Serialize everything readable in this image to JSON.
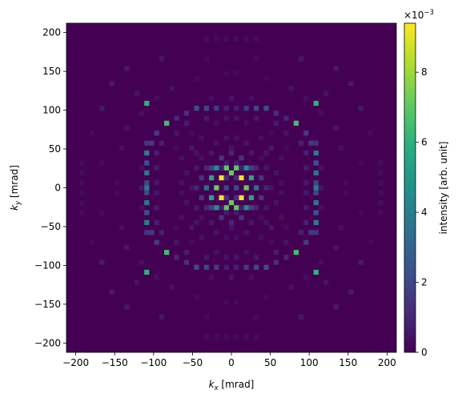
{
  "chart_data": {
    "type": "heatmap",
    "title": "",
    "xlabel": {
      "base": "k",
      "sub": "x",
      "unit": " [mrad]"
    },
    "ylabel": {
      "base": "k",
      "sub": "y",
      "unit": " [mrad]"
    },
    "xlim": [
      -212,
      212
    ],
    "ylim": [
      -212,
      212
    ],
    "xticks": [
      -200,
      -150,
      -100,
      -50,
      0,
      50,
      100,
      150,
      200
    ],
    "yticks": [
      -200,
      -150,
      -100,
      -50,
      0,
      50,
      100,
      150,
      200
    ],
    "xtick_labels": [
      "−200",
      "−150",
      "−100",
      "−50",
      "0",
      "50",
      "100",
      "150",
      "200"
    ],
    "ytick_labels": [
      "−200",
      "−150",
      "−100",
      "−50",
      "0",
      "50",
      "100",
      "150",
      "200"
    ],
    "bin_size": 6.4,
    "colormap": "viridis",
    "colorbar": {
      "label": "intensity [arb. unit]",
      "range": [
        0,
        9.4
      ],
      "ticks": [
        0,
        2,
        4,
        6,
        8
      ],
      "tick_labels": [
        "0",
        "2",
        "4",
        "6",
        "8"
      ],
      "exponent_label": "×10",
      "exponent_power": "−3"
    },
    "grid": false,
    "pixels_note_units": "kx, ky in mrad; value in units of 1e-3 arb.",
    "pixels": [
      [
        -12.8,
        12.8,
        9.2
      ],
      [
        12.8,
        12.8,
        9.2
      ],
      [
        -12.8,
        -12.8,
        9.2
      ],
      [
        12.8,
        -12.8,
        9.2
      ],
      [
        -19.2,
        0,
        7.2
      ],
      [
        19.2,
        0,
        7.2
      ],
      [
        0,
        19.2,
        7.2
      ],
      [
        0,
        -19.2,
        7.2
      ],
      [
        -6.4,
        25.6,
        7.0
      ],
      [
        6.4,
        25.6,
        7.0
      ],
      [
        -6.4,
        -25.6,
        7.0
      ],
      [
        6.4,
        -25.6,
        7.0
      ],
      [
        -25.6,
        12.8,
        5.5
      ],
      [
        25.6,
        12.8,
        5.5
      ],
      [
        -25.6,
        -12.8,
        5.5
      ],
      [
        25.6,
        -12.8,
        5.5
      ],
      [
        -19.2,
        25.6,
        4.5
      ],
      [
        19.2,
        25.6,
        4.5
      ],
      [
        -19.2,
        -25.6,
        4.5
      ],
      [
        19.2,
        -25.6,
        4.5
      ],
      [
        -32,
        0,
        3.5
      ],
      [
        32,
        0,
        3.5
      ],
      [
        -6.4,
        0,
        2.0
      ],
      [
        6.4,
        0,
        2.0
      ],
      [
        -25.6,
        25.6,
        1.8
      ],
      [
        25.6,
        25.6,
        1.8
      ],
      [
        -25.6,
        -25.6,
        1.8
      ],
      [
        25.6,
        -25.6,
        1.8
      ],
      [
        -38.4,
        12.8,
        1.4
      ],
      [
        38.4,
        12.8,
        1.4
      ],
      [
        -38.4,
        -12.8,
        1.4
      ],
      [
        38.4,
        -12.8,
        1.4
      ],
      [
        -12.8,
        38.4,
        1.4
      ],
      [
        12.8,
        38.4,
        1.4
      ],
      [
        -12.8,
        -38.4,
        1.4
      ],
      [
        12.8,
        -38.4,
        1.4
      ],
      [
        -6.4,
        12.8,
        1.2
      ],
      [
        6.4,
        12.8,
        1.2
      ],
      [
        -6.4,
        -12.8,
        1.2
      ],
      [
        6.4,
        -12.8,
        1.2
      ],
      [
        -44.8,
        0,
        1.0
      ],
      [
        44.8,
        0,
        1.0
      ],
      [
        0,
        44.8,
        1.0
      ],
      [
        0,
        -44.8,
        1.0
      ],
      [
        -32,
        25.6,
        1.0
      ],
      [
        32,
        25.6,
        1.0
      ],
      [
        -32,
        -25.6,
        1.0
      ],
      [
        32,
        -25.6,
        1.0
      ],
      [
        -108.8,
        108.8,
        6.0
      ],
      [
        108.8,
        108.8,
        6.0
      ],
      [
        -108.8,
        -108.8,
        6.0
      ],
      [
        108.8,
        -108.8,
        6.0
      ],
      [
        -83.2,
        83.2,
        6.5
      ],
      [
        83.2,
        83.2,
        6.5
      ],
      [
        -83.2,
        -83.2,
        6.5
      ],
      [
        83.2,
        -83.2,
        6.5
      ],
      [
        -108.8,
        0,
        4.0
      ],
      [
        108.8,
        0,
        4.0
      ],
      [
        -108.8,
        44.8,
        4.0
      ],
      [
        108.8,
        44.8,
        4.0
      ],
      [
        -108.8,
        -44.8,
        4.0
      ],
      [
        108.8,
        -44.8,
        4.0
      ],
      [
        -108.8,
        19.2,
        3.8
      ],
      [
        108.8,
        19.2,
        3.8
      ],
      [
        -108.8,
        -19.2,
        3.8
      ],
      [
        108.8,
        -19.2,
        3.8
      ],
      [
        -108.8,
        32,
        2.4
      ],
      [
        108.8,
        32,
        2.4
      ],
      [
        -108.8,
        -32,
        2.4
      ],
      [
        108.8,
        -32,
        2.4
      ],
      [
        -108.8,
        6.4,
        2.0
      ],
      [
        108.8,
        6.4,
        2.0
      ],
      [
        -108.8,
        -6.4,
        2.0
      ],
      [
        108.8,
        -6.4,
        2.0
      ],
      [
        -102.4,
        57.6,
        1.6
      ],
      [
        102.4,
        57.6,
        1.6
      ],
      [
        -102.4,
        -57.6,
        1.6
      ],
      [
        102.4,
        -57.6,
        1.6
      ],
      [
        -108.8,
        57.6,
        1.4
      ],
      [
        108.8,
        57.6,
        1.4
      ],
      [
        -108.8,
        -57.6,
        1.4
      ],
      [
        108.8,
        -57.6,
        1.4
      ],
      [
        -96,
        70.4,
        1.6
      ],
      [
        96,
        70.4,
        1.6
      ],
      [
        -96,
        -70.4,
        1.6
      ],
      [
        96,
        -70.4,
        1.6
      ],
      [
        -32,
        102.4,
        2.0
      ],
      [
        32,
        102.4,
        2.0
      ],
      [
        -32,
        -102.4,
        2.0
      ],
      [
        32,
        -102.4,
        2.0
      ],
      [
        -44.8,
        102.4,
        2.2
      ],
      [
        44.8,
        102.4,
        2.2
      ],
      [
        -44.8,
        -102.4,
        2.2
      ],
      [
        44.8,
        -102.4,
        2.2
      ],
      [
        -19.2,
        102.4,
        1.6
      ],
      [
        19.2,
        102.4,
        1.6
      ],
      [
        -19.2,
        -102.4,
        1.6
      ],
      [
        19.2,
        -102.4,
        1.6
      ],
      [
        -6.4,
        102.4,
        0.8
      ],
      [
        6.4,
        102.4,
        0.8
      ],
      [
        -6.4,
        -102.4,
        0.8
      ],
      [
        6.4,
        -102.4,
        0.8
      ],
      [
        -57.6,
        96,
        1.2
      ],
      [
        57.6,
        96,
        1.2
      ],
      [
        -57.6,
        -96,
        1.2
      ],
      [
        57.6,
        -96,
        1.2
      ],
      [
        -70.4,
        89.6,
        1.0
      ],
      [
        70.4,
        89.6,
        1.0
      ],
      [
        -70.4,
        -89.6,
        1.0
      ],
      [
        70.4,
        -89.6,
        1.0
      ],
      [
        -57.6,
        83.2,
        0.7
      ],
      [
        57.6,
        83.2,
        0.7
      ],
      [
        -57.6,
        -83.2,
        0.7
      ],
      [
        57.6,
        -83.2,
        0.7
      ],
      [
        -89.6,
        57.6,
        0.8
      ],
      [
        89.6,
        57.6,
        0.8
      ],
      [
        -89.6,
        -57.6,
        0.8
      ],
      [
        89.6,
        -57.6,
        0.8
      ],
      [
        -96,
        44.8,
        0.8
      ],
      [
        96,
        44.8,
        0.8
      ],
      [
        -96,
        -44.8,
        0.8
      ],
      [
        96,
        -44.8,
        0.8
      ],
      [
        -96,
        25.6,
        0.7
      ],
      [
        96,
        25.6,
        0.7
      ],
      [
        -96,
        -25.6,
        0.7
      ],
      [
        96,
        -25.6,
        0.7
      ],
      [
        -96,
        6.4,
        0.6
      ],
      [
        96,
        6.4,
        0.6
      ],
      [
        -96,
        -6.4,
        0.6
      ],
      [
        96,
        -6.4,
        0.6
      ],
      [
        -32,
        89.6,
        0.6
      ],
      [
        32,
        89.6,
        0.6
      ],
      [
        -32,
        -89.6,
        0.6
      ],
      [
        32,
        -89.6,
        0.6
      ],
      [
        -6.4,
        89.6,
        0.5
      ],
      [
        6.4,
        89.6,
        0.5
      ],
      [
        -6.4,
        -89.6,
        0.5
      ],
      [
        6.4,
        -89.6,
        0.5
      ],
      [
        -19.2,
        83.2,
        0.4
      ],
      [
        19.2,
        83.2,
        0.4
      ],
      [
        -19.2,
        -83.2,
        0.4
      ],
      [
        19.2,
        -83.2,
        0.4
      ],
      [
        -115.2,
        0,
        0.6
      ],
      [
        115.2,
        0,
        0.6
      ],
      [
        0,
        115.2,
        0.5
      ],
      [
        0,
        -115.2,
        0.5
      ],
      [
        -115.2,
        25.6,
        0.4
      ],
      [
        115.2,
        25.6,
        0.4
      ],
      [
        -115.2,
        -25.6,
        0.4
      ],
      [
        115.2,
        -25.6,
        0.4
      ],
      [
        -25.6,
        115.2,
        0.4
      ],
      [
        25.6,
        115.2,
        0.4
      ],
      [
        -25.6,
        -115.2,
        0.4
      ],
      [
        25.6,
        -115.2,
        0.4
      ],
      [
        -70.4,
        70.4,
        0.5
      ],
      [
        70.4,
        70.4,
        0.5
      ],
      [
        -70.4,
        -70.4,
        0.5
      ],
      [
        70.4,
        -70.4,
        0.5
      ],
      [
        -51.2,
        51.2,
        0.6
      ],
      [
        51.2,
        51.2,
        0.6
      ],
      [
        -51.2,
        -51.2,
        0.6
      ],
      [
        51.2,
        -51.2,
        0.6
      ],
      [
        -44.8,
        44.8,
        0.5
      ],
      [
        44.8,
        44.8,
        0.5
      ],
      [
        -44.8,
        -44.8,
        0.5
      ],
      [
        44.8,
        -44.8,
        0.5
      ],
      [
        -57.6,
        19.2,
        0.5
      ],
      [
        57.6,
        19.2,
        0.5
      ],
      [
        -57.6,
        -19.2,
        0.5
      ],
      [
        57.6,
        -19.2,
        0.5
      ],
      [
        -19.2,
        57.6,
        0.5
      ],
      [
        19.2,
        57.6,
        0.5
      ],
      [
        -19.2,
        -57.6,
        0.5
      ],
      [
        19.2,
        -57.6,
        0.5
      ],
      [
        -51.2,
        0,
        0.5
      ],
      [
        51.2,
        0,
        0.5
      ],
      [
        0,
        51.2,
        0.5
      ],
      [
        0,
        -51.2,
        0.5
      ],
      [
        -44.8,
        25.6,
        0.6
      ],
      [
        44.8,
        25.6,
        0.6
      ],
      [
        -44.8,
        -25.6,
        0.6
      ],
      [
        44.8,
        -25.6,
        0.6
      ],
      [
        -25.6,
        44.8,
        0.6
      ],
      [
        25.6,
        44.8,
        0.6
      ],
      [
        -25.6,
        -44.8,
        0.6
      ],
      [
        25.6,
        -44.8,
        0.6
      ],
      [
        -64,
        38.4,
        0.4
      ],
      [
        64,
        38.4,
        0.4
      ],
      [
        -64,
        -38.4,
        0.4
      ],
      [
        64,
        -38.4,
        0.4
      ],
      [
        -38.4,
        64,
        0.4
      ],
      [
        38.4,
        64,
        0.4
      ],
      [
        -38.4,
        -64,
        0.4
      ],
      [
        38.4,
        -64,
        0.4
      ],
      [
        -64,
        6.4,
        0.4
      ],
      [
        64,
        6.4,
        0.4
      ],
      [
        -64,
        -6.4,
        0.4
      ],
      [
        64,
        -6.4,
        0.4
      ],
      [
        -6.4,
        64,
        0.4
      ],
      [
        6.4,
        64,
        0.4
      ],
      [
        -6.4,
        -64,
        0.4
      ],
      [
        6.4,
        -64,
        0.4
      ],
      [
        -6.4,
        32,
        0.7
      ],
      [
        6.4,
        32,
        0.7
      ],
      [
        -6.4,
        -32,
        0.7
      ],
      [
        6.4,
        -32,
        0.7
      ],
      [
        -12.8,
        25.6,
        0.8
      ],
      [
        12.8,
        25.6,
        0.8
      ],
      [
        -12.8,
        -25.6,
        0.8
      ],
      [
        12.8,
        -25.6,
        0.8
      ],
      [
        -38.4,
        38.4,
        0.4
      ],
      [
        38.4,
        38.4,
        0.4
      ],
      [
        -38.4,
        -38.4,
        0.4
      ],
      [
        38.4,
        -38.4,
        0.4
      ],
      [
        -70.4,
        51.2,
        0.3
      ],
      [
        70.4,
        51.2,
        0.3
      ],
      [
        -70.4,
        -51.2,
        0.3
      ],
      [
        70.4,
        -51.2,
        0.3
      ],
      [
        -51.2,
        70.4,
        0.3
      ],
      [
        51.2,
        70.4,
        0.3
      ],
      [
        -51.2,
        -70.4,
        0.3
      ],
      [
        51.2,
        -70.4,
        0.3
      ],
      [
        -153.6,
        134.4,
        0.7
      ],
      [
        153.6,
        134.4,
        0.7
      ],
      [
        -153.6,
        -134.4,
        0.7
      ],
      [
        153.6,
        -134.4,
        0.7
      ],
      [
        -134.4,
        153.6,
        0.7
      ],
      [
        134.4,
        153.6,
        0.7
      ],
      [
        -134.4,
        -153.6,
        0.7
      ],
      [
        134.4,
        -153.6,
        0.7
      ],
      [
        -166.4,
        102.4,
        0.7
      ],
      [
        166.4,
        102.4,
        0.7
      ],
      [
        -166.4,
        -96,
        0.7
      ],
      [
        166.4,
        -96,
        0.7
      ],
      [
        -89.6,
        166.4,
        0.6
      ],
      [
        89.6,
        166.4,
        0.6
      ],
      [
        -89.6,
        -166.4,
        0.6
      ],
      [
        89.6,
        -166.4,
        0.6
      ],
      [
        -134.4,
        76.8,
        0.6
      ],
      [
        134.4,
        76.8,
        0.6
      ],
      [
        -134.4,
        -76.8,
        0.6
      ],
      [
        134.4,
        -76.8,
        0.6
      ],
      [
        -76.8,
        128,
        0.5
      ],
      [
        76.8,
        128,
        0.5
      ],
      [
        -76.8,
        -128,
        0.5
      ],
      [
        76.8,
        -128,
        0.5
      ],
      [
        -140.8,
        51.2,
        0.4
      ],
      [
        140.8,
        51.2,
        0.4
      ],
      [
        -140.8,
        -51.2,
        0.4
      ],
      [
        140.8,
        -51.2,
        0.4
      ],
      [
        -121.6,
        121.6,
        0.5
      ],
      [
        121.6,
        121.6,
        0.5
      ],
      [
        -121.6,
        -121.6,
        0.5
      ],
      [
        121.6,
        -121.6,
        0.5
      ],
      [
        -96,
        115.2,
        0.4
      ],
      [
        96,
        115.2,
        0.4
      ],
      [
        -96,
        -115.2,
        0.4
      ],
      [
        96,
        -115.2,
        0.4
      ],
      [
        -115.2,
        96,
        0.4
      ],
      [
        115.2,
        96,
        0.4
      ],
      [
        -115.2,
        -96,
        0.4
      ],
      [
        115.2,
        -96,
        0.4
      ],
      [
        -192,
        32,
        0.3
      ],
      [
        192,
        32,
        0.3
      ],
      [
        -192,
        -32,
        0.3
      ],
      [
        192,
        -32,
        0.3
      ],
      [
        -192,
        6.4,
        0.3
      ],
      [
        192,
        6.4,
        0.3
      ],
      [
        -192,
        -6.4,
        0.3
      ],
      [
        192,
        -6.4,
        0.3
      ],
      [
        -192,
        19.2,
        0.3
      ],
      [
        192,
        19.2,
        0.3
      ],
      [
        -192,
        -19.2,
        0.3
      ],
      [
        192,
        -19.2,
        0.3
      ],
      [
        -32,
        192,
        0.3
      ],
      [
        32,
        192,
        0.3
      ],
      [
        -32,
        -192,
        0.3
      ],
      [
        32,
        -192,
        0.3
      ],
      [
        -6.4,
        192,
        0.3
      ],
      [
        6.4,
        192,
        0.3
      ],
      [
        -6.4,
        -192,
        0.3
      ],
      [
        6.4,
        -192,
        0.3
      ],
      [
        -19.2,
        192,
        0.3
      ],
      [
        19.2,
        192,
        0.3
      ],
      [
        -19.2,
        -192,
        0.3
      ],
      [
        19.2,
        -192,
        0.3
      ],
      [
        -32,
        166.4,
        0.3
      ],
      [
        32,
        166.4,
        0.3
      ],
      [
        -32,
        -166.4,
        0.3
      ],
      [
        32,
        -166.4,
        0.3
      ],
      [
        -166.4,
        32,
        0.3
      ],
      [
        166.4,
        32,
        0.3
      ],
      [
        -166.4,
        -32,
        0.3
      ],
      [
        166.4,
        -32,
        0.3
      ],
      [
        -147.2,
        6.4,
        0.25
      ],
      [
        147.2,
        6.4,
        0.25
      ],
      [
        -147.2,
        -6.4,
        0.25
      ],
      [
        147.2,
        -6.4,
        0.25
      ],
      [
        -6.4,
        147.2,
        0.25
      ],
      [
        6.4,
        147.2,
        0.25
      ],
      [
        -6.4,
        -147.2,
        0.25
      ],
      [
        6.4,
        -147.2,
        0.25
      ],
      [
        -44.8,
        140.8,
        0.25
      ],
      [
        44.8,
        140.8,
        0.25
      ],
      [
        -44.8,
        -140.8,
        0.25
      ],
      [
        44.8,
        -140.8,
        0.25
      ],
      [
        -179.2,
        70.4,
        0.25
      ],
      [
        179.2,
        70.4,
        0.25
      ],
      [
        -179.2,
        -70.4,
        0.25
      ],
      [
        179.2,
        -70.4,
        0.25
      ]
    ]
  }
}
